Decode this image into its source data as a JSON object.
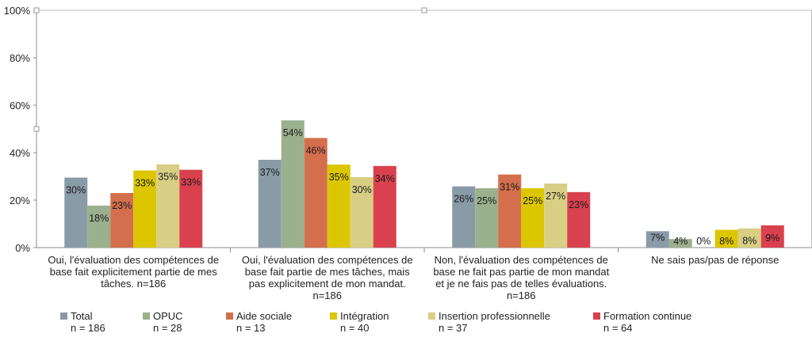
{
  "chart_data": {
    "type": "bar",
    "title": "",
    "xlabel": "",
    "ylabel": "",
    "ylim": [
      0,
      100
    ],
    "yticks": [
      "0%",
      "20%",
      "40%",
      "60%",
      "80%",
      "100%"
    ],
    "grid": false,
    "legend_position": "bottom",
    "categories": [
      [
        "Oui, l'évaluation des compétences de",
        "base fait explicitement partie de mes",
        "tâches. n=186"
      ],
      [
        "Oui, l'évaluation des compétences de",
        "base fait partie de mes tâches, mais",
        "pas explicitement de mon mandat.",
        "n=186"
      ],
      [
        "Non, l'évaluation des compétences de",
        "base ne fait pas partie de mon mandat",
        "et je ne fais pas de telles évaluations.",
        "n=186"
      ],
      [
        "Ne sais pas/pas de réponse"
      ]
    ],
    "series": [
      {
        "name": "Total",
        "n": "n = 186",
        "color": "#8a9ba8",
        "values": [
          29.5,
          37,
          25.8,
          6.9
        ],
        "labels": [
          "30%",
          "37%",
          "26%",
          "7%"
        ]
      },
      {
        "name": "OPUC",
        "n": "n = 28",
        "color": "#9bb08d",
        "values": [
          17.7,
          53.6,
          25,
          3.6
        ],
        "labels": [
          "18%",
          "54%",
          "25%",
          "4%"
        ]
      },
      {
        "name": "Aide sociale",
        "n": "n = 13",
        "color": "#d46f4d",
        "values": [
          23,
          46.2,
          30.8,
          0
        ],
        "labels": [
          "23%",
          "46%",
          "31%",
          "0%"
        ]
      },
      {
        "name": "Intégration",
        "n": "n = 40",
        "color": "#dcc600",
        "values": [
          32.5,
          35,
          25,
          7.5
        ],
        "labels": [
          "33%",
          "35%",
          "25%",
          "8%"
        ]
      },
      {
        "name": "Insertion professionnelle",
        "n": "n = 37",
        "color": "#d8cf85",
        "values": [
          35.1,
          29.7,
          27,
          8.1
        ],
        "labels": [
          "35%",
          "30%",
          "27%",
          "8%"
        ]
      },
      {
        "name": "Formation continue",
        "n": "n = 64",
        "color": "#d9414f",
        "values": [
          32.8,
          34.4,
          23.4,
          9.4
        ],
        "labels": [
          "33%",
          "34%",
          "23%",
          "9%"
        ]
      }
    ]
  }
}
